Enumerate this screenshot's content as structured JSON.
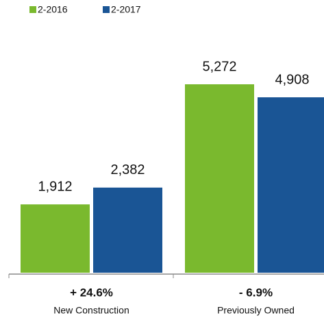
{
  "chart_data": {
    "type": "bar",
    "categories": [
      "New Construction",
      "Previously Owned"
    ],
    "annotations": [
      "+ 24.6%",
      "- 6.9%"
    ],
    "series": [
      {
        "name": "2-2016",
        "color": "#7ab92e",
        "values": [
          1912,
          5272
        ],
        "value_labels": [
          "1,912",
          "5,272"
        ]
      },
      {
        "name": "2-2017",
        "color": "#1a5595",
        "values": [
          2382,
          4908
        ],
        "value_labels": [
          "2,382",
          "4,908"
        ]
      }
    ],
    "legend": "top-left"
  }
}
